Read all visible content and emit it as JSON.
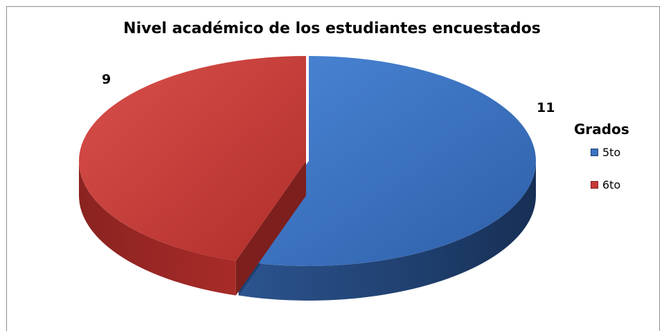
{
  "chart_data": {
    "type": "pie",
    "title": "Nivel académico de los estudiantes encuestados",
    "legend_title": "Grados",
    "legend_position": "right",
    "three_d": true,
    "slices": [
      {
        "label": "5to",
        "value": 11,
        "color": "#3b73c2",
        "side_color": "#1f3f6e",
        "data_label": "11"
      },
      {
        "label": "6to",
        "value": 9,
        "color": "#c73a36",
        "side_color": "#7d1f1d",
        "data_label": "9"
      }
    ]
  }
}
